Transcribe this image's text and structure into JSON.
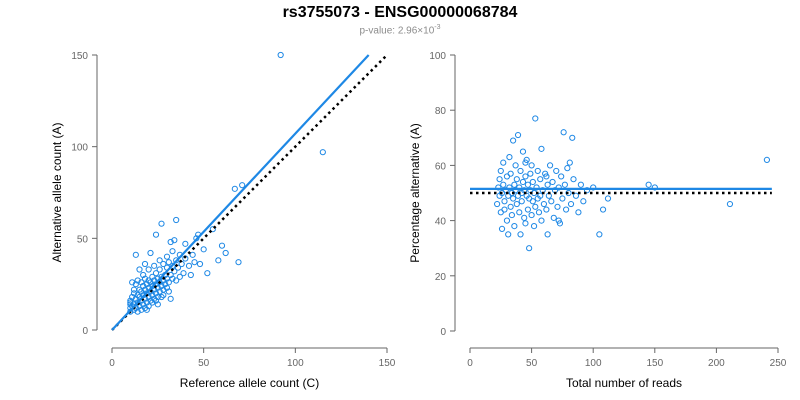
{
  "title": "rs3755073 - ENSG00000068784",
  "subtitle": {
    "prefix": "p-value: 2.96×10",
    "exponent": "-3"
  },
  "colors": {
    "points": "#1e88e5",
    "fit_line": "#1e88e5",
    "reference_line": "#000000",
    "axis": "#666666"
  },
  "chart_data": [
    {
      "type": "scatter",
      "xlabel": "Reference allele count (C)",
      "ylabel": "Alternative allele count (A)",
      "xlim": [
        0,
        150
      ],
      "ylim": [
        0,
        150
      ],
      "xticks": [
        0,
        50,
        100,
        150
      ],
      "yticks": [
        0,
        50,
        100,
        150
      ],
      "grid": false,
      "fit_line": {
        "style": "solid",
        "x": [
          0,
          140
        ],
        "y": [
          0,
          150
        ]
      },
      "reference_line": {
        "style": "dotted",
        "x": [
          0,
          150
        ],
        "y": [
          0,
          150
        ]
      },
      "points": [
        [
          10,
          10
        ],
        [
          10,
          12
        ],
        [
          10,
          14
        ],
        [
          10,
          15
        ],
        [
          10,
          16
        ],
        [
          11,
          13
        ],
        [
          11,
          18
        ],
        [
          11,
          26
        ],
        [
          12,
          11
        ],
        [
          12,
          14
        ],
        [
          12,
          20
        ],
        [
          12,
          22
        ],
        [
          13,
          12
        ],
        [
          13,
          17
        ],
        [
          13,
          25
        ],
        [
          13,
          41
        ],
        [
          14,
          15
        ],
        [
          14,
          19
        ],
        [
          14,
          27
        ],
        [
          15,
          13
        ],
        [
          15,
          18
        ],
        [
          15,
          22
        ],
        [
          15,
          33
        ],
        [
          16,
          16
        ],
        [
          16,
          21
        ],
        [
          16,
          26
        ],
        [
          17,
          14
        ],
        [
          17,
          19
        ],
        [
          17,
          24
        ],
        [
          17,
          30
        ],
        [
          18,
          12
        ],
        [
          18,
          17
        ],
        [
          18,
          22
        ],
        [
          18,
          28
        ],
        [
          18,
          36
        ],
        [
          19,
          15
        ],
        [
          19,
          20
        ],
        [
          19,
          25
        ],
        [
          20,
          18
        ],
        [
          20,
          23
        ],
        [
          20,
          27
        ],
        [
          20,
          33
        ],
        [
          21,
          16
        ],
        [
          21,
          21
        ],
        [
          21,
          26
        ],
        [
          21,
          42
        ],
        [
          22,
          19
        ],
        [
          22,
          24
        ],
        [
          22,
          29
        ],
        [
          23,
          17
        ],
        [
          23,
          22
        ],
        [
          23,
          27
        ],
        [
          23,
          35
        ],
        [
          24,
          20
        ],
        [
          24,
          25
        ],
        [
          24,
          31
        ],
        [
          24,
          52
        ],
        [
          25,
          18
        ],
        [
          25,
          23
        ],
        [
          25,
          28
        ],
        [
          26,
          21
        ],
        [
          26,
          26
        ],
        [
          26,
          33
        ],
        [
          26,
          38
        ],
        [
          27,
          24
        ],
        [
          27,
          29
        ],
        [
          27,
          58
        ],
        [
          28,
          22
        ],
        [
          28,
          27
        ],
        [
          28,
          36
        ],
        [
          29,
          25
        ],
        [
          29,
          30
        ],
        [
          30,
          23
        ],
        [
          30,
          28
        ],
        [
          30,
          34
        ],
        [
          30,
          40
        ],
        [
          31,
          26
        ],
        [
          31,
          37
        ],
        [
          32,
          30
        ],
        [
          32,
          48
        ],
        [
          33,
          28
        ],
        [
          33,
          35
        ],
        [
          33,
          43
        ],
        [
          34,
          32
        ],
        [
          34,
          49
        ],
        [
          35,
          27
        ],
        [
          35,
          38
        ],
        [
          35,
          60
        ],
        [
          36,
          34
        ],
        [
          37,
          29
        ],
        [
          37,
          41
        ],
        [
          38,
          36
        ],
        [
          39,
          31
        ],
        [
          40,
          39
        ],
        [
          40,
          47
        ],
        [
          42,
          35
        ],
        [
          43,
          30
        ],
        [
          44,
          41
        ],
        [
          45,
          37
        ],
        [
          46,
          50
        ],
        [
          47,
          52
        ],
        [
          48,
          36
        ],
        [
          50,
          44
        ],
        [
          52,
          31
        ],
        [
          55,
          55
        ],
        [
          58,
          38
        ],
        [
          60,
          46
        ],
        [
          62,
          42
        ],
        [
          67,
          77
        ],
        [
          69,
          37
        ],
        [
          71,
          79
        ],
        [
          92,
          150
        ],
        [
          115,
          97
        ],
        [
          14,
          10
        ],
        [
          16,
          11
        ],
        [
          20,
          13
        ],
        [
          22,
          15
        ],
        [
          25,
          14
        ],
        [
          28,
          19
        ],
        [
          32,
          17
        ],
        [
          19,
          11
        ],
        [
          24,
          16
        ],
        [
          27,
          18
        ],
        [
          31,
          21
        ]
      ]
    },
    {
      "type": "scatter",
      "xlabel": "Total number of reads",
      "ylabel": "Percentage alternative (A)",
      "xlim": [
        0,
        250
      ],
      "ylim": [
        0,
        100
      ],
      "xticks": [
        0,
        50,
        100,
        150,
        200,
        250
      ],
      "yticks": [
        0,
        20,
        40,
        60,
        80,
        100
      ],
      "grid": false,
      "fit_line": {
        "style": "solid",
        "x": [
          0,
          245
        ],
        "y": [
          51.5,
          51.5
        ]
      },
      "reference_line": {
        "style": "dotted",
        "x": [
          0,
          245
        ],
        "y": [
          50,
          50
        ]
      },
      "points": [
        [
          22,
          46
        ],
        [
          23,
          52
        ],
        [
          24,
          49
        ],
        [
          24,
          55
        ],
        [
          25,
          43
        ],
        [
          25,
          58
        ],
        [
          26,
          50
        ],
        [
          26,
          37
        ],
        [
          27,
          53
        ],
        [
          27,
          61
        ],
        [
          28,
          47
        ],
        [
          28,
          44
        ],
        [
          29,
          51
        ],
        [
          30,
          56
        ],
        [
          30,
          40
        ],
        [
          31,
          49
        ],
        [
          31,
          35
        ],
        [
          32,
          52
        ],
        [
          32,
          63
        ],
        [
          33,
          45
        ],
        [
          33,
          57
        ],
        [
          34,
          50
        ],
        [
          34,
          42
        ],
        [
          35,
          48
        ],
        [
          35,
          69
        ],
        [
          36,
          53
        ],
        [
          36,
          38
        ],
        [
          37,
          51
        ],
        [
          37,
          60
        ],
        [
          38,
          46
        ],
        [
          38,
          55
        ],
        [
          39,
          49
        ],
        [
          39,
          71
        ],
        [
          40,
          43
        ],
        [
          40,
          52
        ],
        [
          41,
          58
        ],
        [
          41,
          35
        ],
        [
          42,
          50
        ],
        [
          42,
          47
        ],
        [
          43,
          54
        ],
        [
          43,
          65
        ],
        [
          44,
          41
        ],
        [
          44,
          51
        ],
        [
          45,
          56
        ],
        [
          45,
          39
        ],
        [
          46,
          49
        ],
        [
          46,
          62
        ],
        [
          47,
          53
        ],
        [
          47,
          44
        ],
        [
          48,
          48
        ],
        [
          48,
          30
        ],
        [
          49,
          57
        ],
        [
          49,
          51
        ],
        [
          50,
          42
        ],
        [
          50,
          60
        ],
        [
          51,
          47
        ],
        [
          51,
          54
        ],
        [
          52,
          50
        ],
        [
          52,
          38
        ],
        [
          53,
          77
        ],
        [
          53,
          45
        ],
        [
          54,
          52
        ],
        [
          55,
          48
        ],
        [
          55,
          58
        ],
        [
          56,
          43
        ],
        [
          57,
          55
        ],
        [
          57,
          49
        ],
        [
          58,
          66
        ],
        [
          58,
          40
        ],
        [
          59,
          51
        ],
        [
          60,
          46
        ],
        [
          61,
          57
        ],
        [
          62,
          44
        ],
        [
          63,
          53
        ],
        [
          63,
          35
        ],
        [
          64,
          49
        ],
        [
          65,
          60
        ],
        [
          66,
          47
        ],
        [
          67,
          54
        ],
        [
          68,
          41
        ],
        [
          69,
          51
        ],
        [
          70,
          58
        ],
        [
          71,
          45
        ],
        [
          72,
          52
        ],
        [
          73,
          39
        ],
        [
          74,
          56
        ],
        [
          75,
          48
        ],
        [
          76,
          72
        ],
        [
          77,
          53
        ],
        [
          78,
          44
        ],
        [
          79,
          59
        ],
        [
          80,
          50
        ],
        [
          81,
          61
        ],
        [
          82,
          46
        ],
        [
          83,
          70
        ],
        [
          84,
          55
        ],
        [
          86,
          49
        ],
        [
          88,
          43
        ],
        [
          90,
          53
        ],
        [
          92,
          47
        ],
        [
          95,
          51
        ],
        [
          100,
          52
        ],
        [
          105,
          35
        ],
        [
          108,
          44
        ],
        [
          112,
          48
        ],
        [
          145,
          53
        ],
        [
          150,
          52
        ],
        [
          211,
          46
        ],
        [
          241,
          62
        ],
        [
          45,
          61
        ],
        [
          62,
          56
        ],
        [
          72,
          40
        ]
      ]
    }
  ]
}
